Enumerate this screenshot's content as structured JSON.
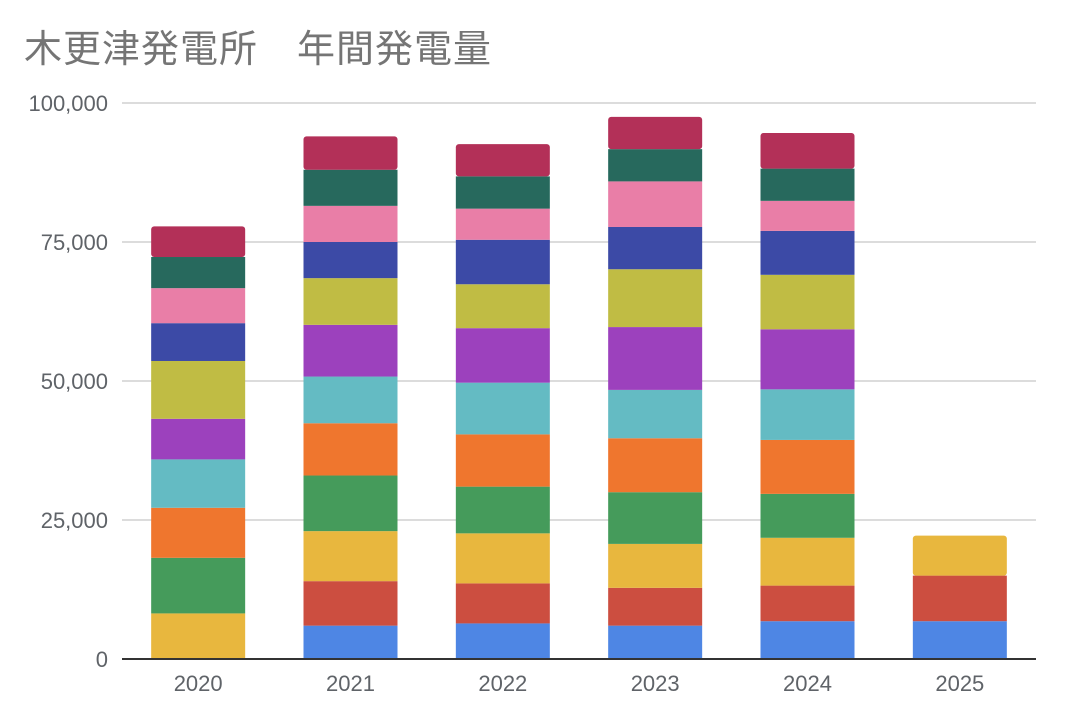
{
  "chart_data": {
    "type": "bar",
    "stacked": true,
    "title": "木更津発電所　年間発電量",
    "xlabel": "",
    "ylabel": "",
    "ylim": [
      0,
      100000
    ],
    "yticks": [
      "0",
      "25,000",
      "50,000",
      "75,000",
      "100,000"
    ],
    "ytick_values": [
      0,
      25000,
      50000,
      75000,
      100000
    ],
    "grid": true,
    "legend": "none",
    "categories": [
      "2020",
      "2021",
      "2022",
      "2023",
      "2024",
      "2025"
    ],
    "series": [
      {
        "color": "#4e86e4",
        "values": [
          0,
          6000,
          6400,
          6000,
          6800,
          6800
        ]
      },
      {
        "color": "#cc4e40",
        "values": [
          0,
          8000,
          7200,
          6800,
          6400,
          8200
        ]
      },
      {
        "color": "#e8b73e",
        "values": [
          8200,
          9000,
          9000,
          7900,
          8600,
          7200
        ]
      },
      {
        "color": "#459b5b",
        "values": [
          10000,
          10000,
          8400,
          9300,
          7900,
          0
        ]
      },
      {
        "color": "#ef762e",
        "values": [
          9000,
          9400,
          9400,
          9700,
          9700,
          0
        ]
      },
      {
        "color": "#64bbc3",
        "values": [
          8700,
          8400,
          9300,
          8700,
          9100,
          0
        ]
      },
      {
        "color": "#9c41bd",
        "values": [
          7300,
          9300,
          9800,
          11300,
          10800,
          0
        ]
      },
      {
        "color": "#c0bc44",
        "values": [
          10400,
          8400,
          7900,
          10400,
          9800,
          0
        ]
      },
      {
        "color": "#3c4aa6",
        "values": [
          6800,
          6500,
          8000,
          7600,
          7900,
          0
        ]
      },
      {
        "color": "#e97ea7",
        "values": [
          6300,
          6500,
          5600,
          8200,
          5400,
          0
        ]
      },
      {
        "color": "#27695d",
        "values": [
          5600,
          6500,
          5800,
          5800,
          5800,
          0
        ]
      },
      {
        "color": "#b33058",
        "values": [
          5500,
          6000,
          5800,
          5800,
          6400,
          0
        ]
      }
    ]
  }
}
